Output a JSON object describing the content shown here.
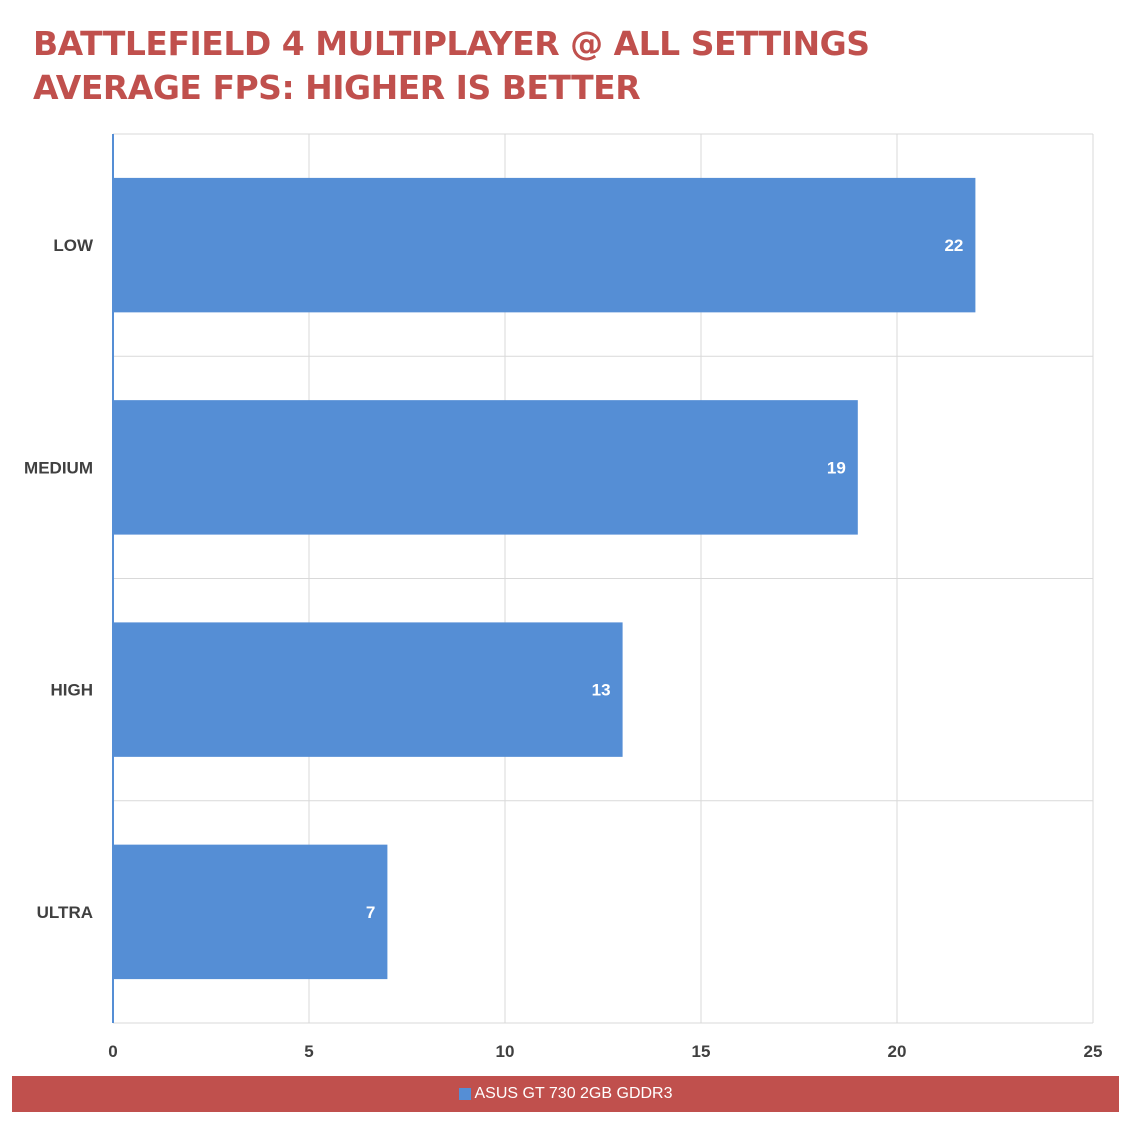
{
  "title_lines": [
    "BATTLEFIELD 4 MULTIPLAYER @ ALL SETTINGS",
    "AVERAGE FPS: HIGHER IS BETTER"
  ],
  "colors": {
    "title": "#c0504d",
    "bar": "#558ed5",
    "legend_bg": "#c0504d",
    "grid": "#d9d9d9",
    "axis": "#558ed5"
  },
  "chart_data": {
    "type": "bar",
    "orientation": "horizontal",
    "title": "BATTLEFIELD 4 MULTIPLAYER @ ALL SETTINGS\nAVERAGE FPS: HIGHER IS BETTER",
    "categories": [
      "LOW",
      "MEDIUM",
      "HIGH",
      "ULTRA"
    ],
    "series": [
      {
        "name": "ASUS GT 730 2GB GDDR3",
        "values": [
          22,
          19,
          13,
          7
        ]
      }
    ],
    "xlim": [
      0,
      25
    ],
    "xticks": [
      0,
      5,
      10,
      15,
      20,
      25
    ],
    "grid": true,
    "data_labels": true,
    "legend": "bottom"
  }
}
